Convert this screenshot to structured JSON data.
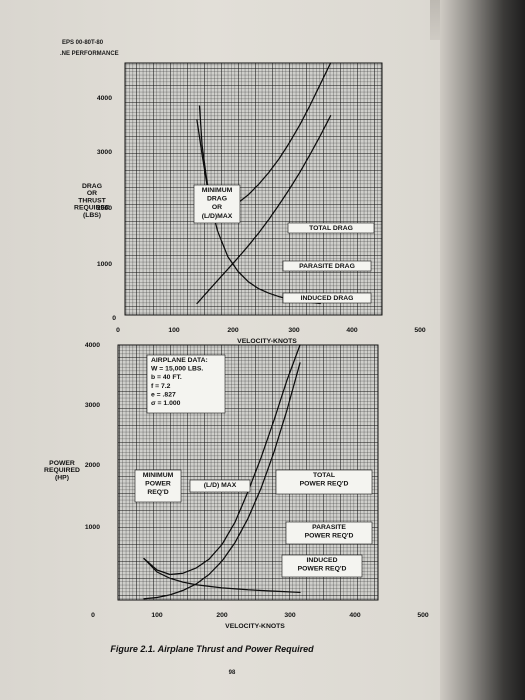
{
  "header": {
    "line1": "EPS 00-80T-80",
    "line2": ".NE PERFORMANCE"
  },
  "chart_data": [
    {
      "type": "line",
      "title": "",
      "xlabel": "VELOCITY-KNOTS",
      "ylabel": "DRAG OR THRUST REQUIRED (LBS)",
      "ylabel_lines": [
        "DRAG",
        "OR",
        "THRUST",
        "REQUIRED",
        "(LBS)"
      ],
      "xlim": [
        0,
        500
      ],
      "ylim": [
        0,
        4400
      ],
      "x_ticks": [
        "0",
        "100",
        "200",
        "300",
        "400",
        "500"
      ],
      "y_ticks": [
        "0",
        "1000",
        "2000",
        "3000",
        "4000"
      ],
      "grid": true,
      "series": [
        {
          "name": "TOTAL DRAG",
          "x": [
            145,
            150,
            160,
            170,
            185,
            200,
            220,
            240,
            260,
            280,
            300,
            320,
            340,
            360,
            380,
            400
          ],
          "y": [
            3650,
            2960,
            2300,
            2020,
            1880,
            1890,
            1960,
            2100,
            2280,
            2490,
            2730,
            3010,
            3320,
            3660,
            4030,
            4420
          ]
        },
        {
          "name": "PARASITE DRAG",
          "x": [
            140,
            160,
            180,
            200,
            220,
            240,
            260,
            280,
            300,
            320,
            340,
            360,
            380,
            400
          ],
          "y": [
            200,
            400,
            600,
            800,
            1000,
            1210,
            1430,
            1670,
            1930,
            2200,
            2490,
            2800,
            3130,
            3480
          ]
        },
        {
          "name": "INDUCED DRAG",
          "x": [
            140,
            150,
            160,
            170,
            180,
            200,
            220,
            240,
            260,
            280,
            300,
            320,
            340,
            360,
            380
          ],
          "y": [
            3400,
            2800,
            2250,
            1820,
            1470,
            1020,
            760,
            580,
            460,
            380,
            320,
            270,
            240,
            220,
            200
          ]
        }
      ],
      "annotations": [
        {
          "text_lines": [
            "MINIMUM",
            "DRAG",
            "OR",
            "(L/D)MAX"
          ]
        },
        {
          "text": "TOTAL DRAG"
        },
        {
          "text": "PARASITE DRAG"
        },
        {
          "text": "INDUCED DRAG"
        }
      ]
    },
    {
      "type": "line",
      "title": "",
      "xlabel": "VELOCITY-KNOTS",
      "ylabel": "POWER REQUIRED (HP)",
      "ylabel_lines": [
        "POWER",
        "REQUIRED",
        "(HP)"
      ],
      "xlim": [
        0,
        500
      ],
      "ylim": [
        0,
        4000
      ],
      "x_ticks": [
        "0",
        "100",
        "200",
        "300",
        "400",
        "500"
      ],
      "y_ticks": [
        "1000",
        "2000",
        "3000",
        "4000"
      ],
      "grid": true,
      "series": [
        {
          "name": "TOTAL POWER REQ'D",
          "x": [
            50,
            75,
            100,
            125,
            150,
            175,
            200,
            225,
            250,
            275,
            300,
            325,
            350
          ],
          "y": [
            650,
            470,
            400,
            420,
            500,
            640,
            870,
            1220,
            1700,
            2230,
            2820,
            3450,
            4050
          ]
        },
        {
          "name": "PARASITE POWER REQ'D",
          "x": [
            50,
            75,
            100,
            125,
            150,
            175,
            200,
            225,
            250,
            275,
            300,
            325,
            350
          ],
          "y": [
            20,
            40,
            80,
            150,
            250,
            400,
            610,
            900,
            1280,
            1750,
            2320,
            2980,
            3720
          ]
        },
        {
          "name": "INDUCED POWER REQ'D",
          "x": [
            50,
            75,
            100,
            125,
            150,
            200,
            250,
            300,
            350
          ],
          "y": [
            650,
            440,
            340,
            280,
            240,
            190,
            160,
            140,
            120
          ]
        }
      ],
      "annotations": [
        {
          "text_lines": [
            "AIRPLANE DATA:",
            "W = 15,000 LBS.",
            "b = 40 FT.",
            "f = 7.2",
            "e = .827",
            "σ = 1.000"
          ]
        },
        {
          "text_lines": [
            "MINIMUM",
            "POWER",
            "REQ'D"
          ]
        },
        {
          "text": "(L/D) MAX"
        },
        {
          "text_lines": [
            "TOTAL",
            "POWER REQ'D"
          ]
        },
        {
          "text_lines": [
            "PARASITE",
            "POWER REQ'D"
          ]
        },
        {
          "text_lines": [
            "INDUCED",
            "POWER REQ'D"
          ]
        }
      ]
    }
  ],
  "caption": "Figure 2.1. Airplane Thrust and Power Required",
  "page_number": "98"
}
